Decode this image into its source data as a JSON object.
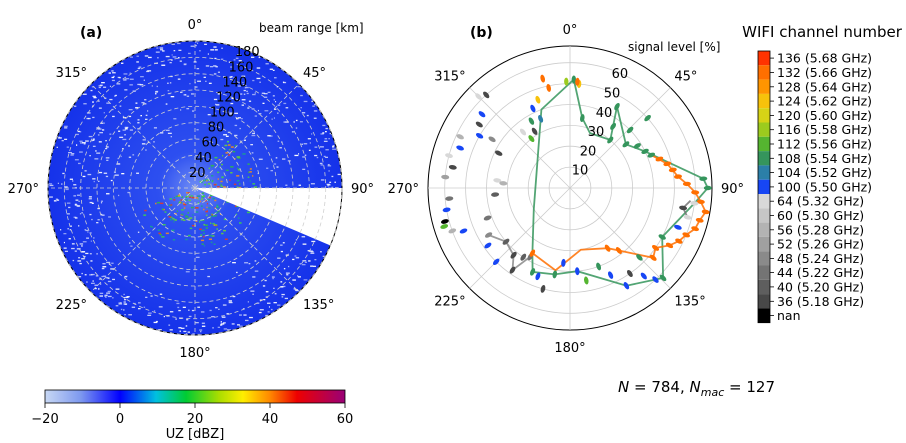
{
  "chart_data": [
    {
      "type": "polar-radar",
      "panel_label": "(a)",
      "angle_labels": [
        "0°",
        "45°",
        "90°",
        "135°",
        "180°",
        "225°",
        "270°",
        "315°"
      ],
      "r_label": "beam range [km]",
      "r_ticks": [
        "20",
        "40",
        "60",
        "80",
        "100",
        "120",
        "140",
        "160",
        "180"
      ],
      "r_max": 180,
      "colorbar": {
        "label": "UZ [dBZ]",
        "range": [
          -20,
          60
        ],
        "ticks": [
          "−20",
          "0",
          "20",
          "40",
          "60"
        ]
      },
      "blocked_sector_deg": [
        90,
        113
      ]
    },
    {
      "type": "polar-scatter",
      "panel_label": "(b)",
      "angle_labels": [
        "0°",
        "45°",
        "90°",
        "135°",
        "180°",
        "225°",
        "270°",
        "315°"
      ],
      "r_label": "signal level [%]",
      "r_ticks": [
        "10",
        "20",
        "30",
        "40",
        "50",
        "60"
      ],
      "r_max": 68,
      "annotation": "N = 784, N_mac = 127",
      "legend_title": "WIFI channel number",
      "legend": [
        {
          "label": "136 (5.68 GHz)",
          "color": "#ff3300"
        },
        {
          "label": "132 (5.66 GHz)",
          "color": "#ff6f00"
        },
        {
          "label": "128 (5.64 GHz)",
          "color": "#ff9500"
        },
        {
          "label": "124 (5.62 GHz)",
          "color": "#f7c20b"
        },
        {
          "label": "120 (5.60 GHz)",
          "color": "#d6d316"
        },
        {
          "label": "116 (5.58 GHz)",
          "color": "#9ccb1e"
        },
        {
          "label": "112 (5.56 GHz)",
          "color": "#55b530"
        },
        {
          "label": "108 (5.54 GHz)",
          "color": "#35955c"
        },
        {
          "label": "104 (5.52 GHz)",
          "color": "#2b7fa8"
        },
        {
          "label": "100 (5.50 GHz)",
          "color": "#1746f5"
        },
        {
          "label": "64 (5.32 GHz)",
          "color": "#d8d8d8"
        },
        {
          "label": "60 (5.30 GHz)",
          "color": "#c6c6c6"
        },
        {
          "label": "56 (5.28 GHz)",
          "color": "#b3b3b3"
        },
        {
          "label": "52 (5.26 GHz)",
          "color": "#a0a0a0"
        },
        {
          "label": "48 (5.24 GHz)",
          "color": "#8a8a8a"
        },
        {
          "label": "44 (5.22 GHz)",
          "color": "#747474"
        },
        {
          "label": "40 (5.20 GHz)",
          "color": "#5e5e5e"
        },
        {
          "label": "36 (5.18 GHz)",
          "color": "#484848"
        },
        {
          "label": "nan",
          "color": "#000000"
        }
      ],
      "points": [
        {
          "az": 2,
          "r": 52,
          "ch": "108"
        },
        {
          "az": 5,
          "r": 50,
          "ch": "124"
        },
        {
          "az": -2,
          "r": 51,
          "ch": "116"
        },
        {
          "az": 4,
          "r": 51,
          "ch": "132"
        },
        {
          "az": 10,
          "r": 34,
          "ch": "108"
        },
        {
          "az": -14,
          "r": 54,
          "ch": "132"
        },
        {
          "az": -12,
          "r": 49,
          "ch": "132"
        },
        {
          "az": -20,
          "r": 45,
          "ch": "124"
        },
        {
          "az": -25,
          "r": 42,
          "ch": "100"
        },
        {
          "az": -23,
          "r": 36,
          "ch": "104"
        },
        {
          "az": -30,
          "r": 37,
          "ch": "108"
        },
        {
          "az": -32,
          "r": 32,
          "ch": "36"
        },
        {
          "az": -40,
          "r": 35,
          "ch": "64"
        },
        {
          "az": -38,
          "r": 30,
          "ch": "112"
        },
        {
          "az": -45,
          "r": 62,
          "ch": "64"
        },
        {
          "az": -42,
          "r": 60,
          "ch": "36"
        },
        {
          "az": -50,
          "r": 55,
          "ch": "100"
        },
        {
          "az": -55,
          "r": 53,
          "ch": "36"
        },
        {
          "az": -60,
          "r": 50,
          "ch": "100"
        },
        {
          "az": -65,
          "r": 58,
          "ch": "56"
        },
        {
          "az": -70,
          "r": 56,
          "ch": "100"
        },
        {
          "az": -75,
          "r": 60,
          "ch": "64"
        },
        {
          "az": -80,
          "r": 57,
          "ch": "36"
        },
        {
          "az": -85,
          "r": 60,
          "ch": "52"
        },
        {
          "az": -95,
          "r": 58,
          "ch": "44"
        },
        {
          "az": -100,
          "r": 60,
          "ch": "100"
        },
        {
          "az": -105,
          "r": 62,
          "ch": "nan"
        },
        {
          "az": -107,
          "r": 63,
          "ch": "112"
        },
        {
          "az": -110,
          "r": 60,
          "ch": "56"
        },
        {
          "az": -112,
          "r": 55,
          "ch": "100"
        },
        {
          "az": -84,
          "r": 35,
          "ch": "64"
        },
        {
          "az": -86,
          "r": 32,
          "ch": "56"
        },
        {
          "az": -95,
          "r": 36,
          "ch": "40"
        },
        {
          "az": -110,
          "r": 42,
          "ch": "44"
        },
        {
          "az": -120,
          "r": 45,
          "ch": "48"
        },
        {
          "az": -125,
          "r": 48,
          "ch": "100"
        },
        {
          "az": -130,
          "r": 40,
          "ch": "40"
        },
        {
          "az": -135,
          "r": 50,
          "ch": "100"
        },
        {
          "az": -140,
          "r": 42,
          "ch": "36"
        },
        {
          "az": -145,
          "r": 48,
          "ch": "36"
        },
        {
          "az": -150,
          "r": 38,
          "ch": "44"
        },
        {
          "az": -160,
          "r": 45,
          "ch": "100"
        },
        {
          "az": -165,
          "r": 50,
          "ch": "36"
        },
        {
          "az": -170,
          "r": 42,
          "ch": "108"
        },
        {
          "az": -175,
          "r": 36,
          "ch": "100"
        },
        {
          "az": 175,
          "r": 40,
          "ch": "100"
        },
        {
          "az": 170,
          "r": 45,
          "ch": "112"
        },
        {
          "az": 160,
          "r": 40,
          "ch": "108"
        },
        {
          "az": 155,
          "r": 46,
          "ch": "100"
        },
        {
          "az": 150,
          "r": 54,
          "ch": "100"
        },
        {
          "az": 145,
          "r": 50,
          "ch": "36"
        },
        {
          "az": 140,
          "r": 55,
          "ch": "100"
        },
        {
          "az": 135,
          "r": 47,
          "ch": "108"
        },
        {
          "az": 130,
          "r": 52,
          "ch": "132"
        },
        {
          "az": 125,
          "r": 50,
          "ch": "132"
        },
        {
          "az": 120,
          "r": 55,
          "ch": "132"
        },
        {
          "az": 116,
          "r": 58,
          "ch": "132"
        },
        {
          "az": 112,
          "r": 60,
          "ch": "132"
        },
        {
          "az": 108,
          "r": 63,
          "ch": "132"
        },
        {
          "az": 104,
          "r": 64,
          "ch": "132"
        },
        {
          "az": 100,
          "r": 66,
          "ch": "132"
        },
        {
          "az": 96,
          "r": 63,
          "ch": "132"
        },
        {
          "az": 92,
          "r": 60,
          "ch": "132"
        },
        {
          "az": 88,
          "r": 56,
          "ch": "132"
        },
        {
          "az": 84,
          "r": 52,
          "ch": "132"
        },
        {
          "az": 80,
          "r": 50,
          "ch": "132"
        },
        {
          "az": 76,
          "r": 48,
          "ch": "132"
        },
        {
          "az": 72,
          "r": 45,
          "ch": "132"
        },
        {
          "az": 68,
          "r": 42,
          "ch": "108"
        },
        {
          "az": 64,
          "r": 40,
          "ch": "108"
        },
        {
          "az": 58,
          "r": 38,
          "ch": "108"
        },
        {
          "az": 52,
          "r": 34,
          "ch": "108"
        },
        {
          "az": 46,
          "r": 40,
          "ch": "108"
        },
        {
          "az": 40,
          "r": 30,
          "ch": "108"
        },
        {
          "az": 35,
          "r": 36,
          "ch": "108"
        },
        {
          "az": 30,
          "r": 45,
          "ch": "108"
        },
        {
          "az": 48,
          "r": 50,
          "ch": "108"
        },
        {
          "az": 86,
          "r": 64,
          "ch": "108"
        },
        {
          "az": 90,
          "r": 66,
          "ch": "108"
        },
        {
          "az": 97,
          "r": 60,
          "ch": "64"
        },
        {
          "az": 100,
          "r": 55,
          "ch": "36"
        },
        {
          "az": 104,
          "r": 58,
          "ch": "64"
        },
        {
          "az": 110,
          "r": 55,
          "ch": "100"
        },
        {
          "az": 118,
          "r": 50,
          "ch": "108"
        },
        {
          "az": 134,
          "r": 62,
          "ch": "108"
        },
        {
          "az": 137,
          "r": 60,
          "ch": "100"
        },
        {
          "az": 142,
          "r": 38,
          "ch": "132"
        },
        {
          "az": 148,
          "r": 34,
          "ch": "132"
        },
        {
          "az": -150,
          "r": 36,
          "ch": "132"
        },
        {
          "az": -146,
          "r": 40,
          "ch": "40"
        },
        {
          "az": -156,
          "r": 44,
          "ch": "108"
        },
        {
          "az": -64,
          "r": 38,
          "ch": "36"
        },
        {
          "az": -58,
          "r": 44,
          "ch": "48"
        }
      ],
      "tracks": [
        {
          "ch": "108",
          "path": [
            [
              2,
              52
            ],
            [
              10,
              34
            ],
            [
              20,
              28
            ],
            [
              40,
              30
            ],
            [
              30,
              45
            ],
            [
              52,
              34
            ],
            [
              64,
              40
            ],
            [
              86,
              64
            ],
            [
              90,
              66
            ],
            [
              97,
              60
            ],
            [
              118,
              50
            ],
            [
              134,
              62
            ],
            [
              150,
              54
            ],
            [
              175,
              40
            ],
            [
              -170,
              42
            ],
            [
              -156,
              44
            ],
            [
              -150,
              36
            ],
            [
              -120,
              20
            ],
            [
              -20,
              40
            ],
            [
              2,
              52
            ]
          ]
        },
        {
          "ch": "132",
          "path": [
            [
              68,
              42
            ],
            [
              76,
              48
            ],
            [
              84,
              52
            ],
            [
              88,
              56
            ],
            [
              92,
              60
            ],
            [
              96,
              63
            ],
            [
              100,
              66
            ],
            [
              104,
              64
            ],
            [
              108,
              63
            ],
            [
              112,
              60
            ],
            [
              116,
              58
            ],
            [
              120,
              55
            ],
            [
              125,
              50
            ],
            [
              130,
              52
            ],
            [
              142,
              38
            ],
            [
              148,
              34
            ],
            [
              170,
              30
            ],
            [
              -170,
              40
            ],
            [
              -150,
              36
            ]
          ]
        },
        {
          "ch": "48",
          "path": [
            [
              -120,
              45
            ],
            [
              -130,
              40
            ],
            [
              -140,
              42
            ],
            [
              -145,
              48
            ],
            [
              -150,
              38
            ]
          ]
        },
        {
          "ch": "44",
          "path": [
            [
              96,
              58
            ],
            [
              100,
              55
            ],
            [
              104,
              58
            ]
          ]
        }
      ]
    }
  ]
}
